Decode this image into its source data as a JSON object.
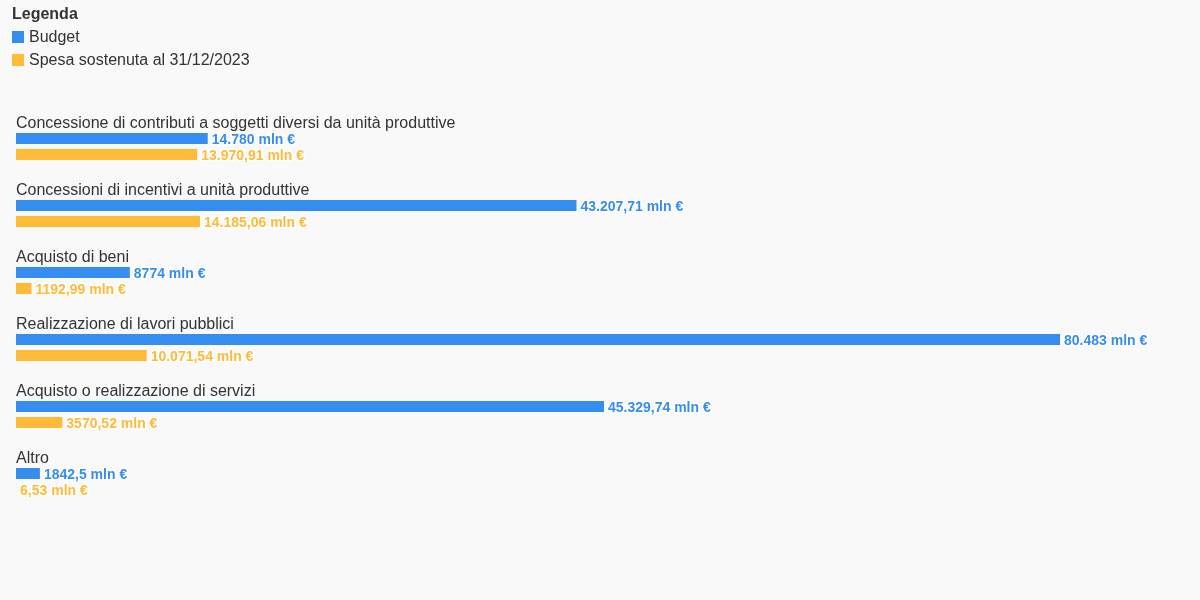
{
  "chart_data": {
    "type": "bar",
    "orientation": "horizontal",
    "categories": [
      "Concessione di contributi a soggetti diversi da unità produttive",
      "Concessioni di incentivi a unità produttive",
      "Acquisto di beni",
      "Realizzazione di lavori pubblici",
      "Acquisto o realizzazione di servizi",
      "Altro"
    ],
    "series": [
      {
        "name": "Budget",
        "color": "#368df0",
        "values": [
          14780,
          43207.71,
          8774,
          80483,
          45329.74,
          1842.5
        ],
        "value_labels": [
          "14.780 mln €",
          "43.207,71 mln €",
          "8774 mln €",
          "80.483 mln €",
          "45.329,74 mln €",
          "1842,5 mln €"
        ]
      },
      {
        "name": "Spesa sostenuta al 31/12/2023",
        "color": "#ffba37",
        "values": [
          13970.91,
          14185.06,
          1192.99,
          10071.54,
          3570.52,
          6.53
        ],
        "value_labels": [
          "13.970,91 mln €",
          "14.185,06 mln €",
          "1192,99 mln €",
          "10.071,54 mln €",
          "3570,52 mln €",
          "6,53 mln €"
        ]
      }
    ],
    "legend_title": "Legenda",
    "legend": "top left"
  }
}
